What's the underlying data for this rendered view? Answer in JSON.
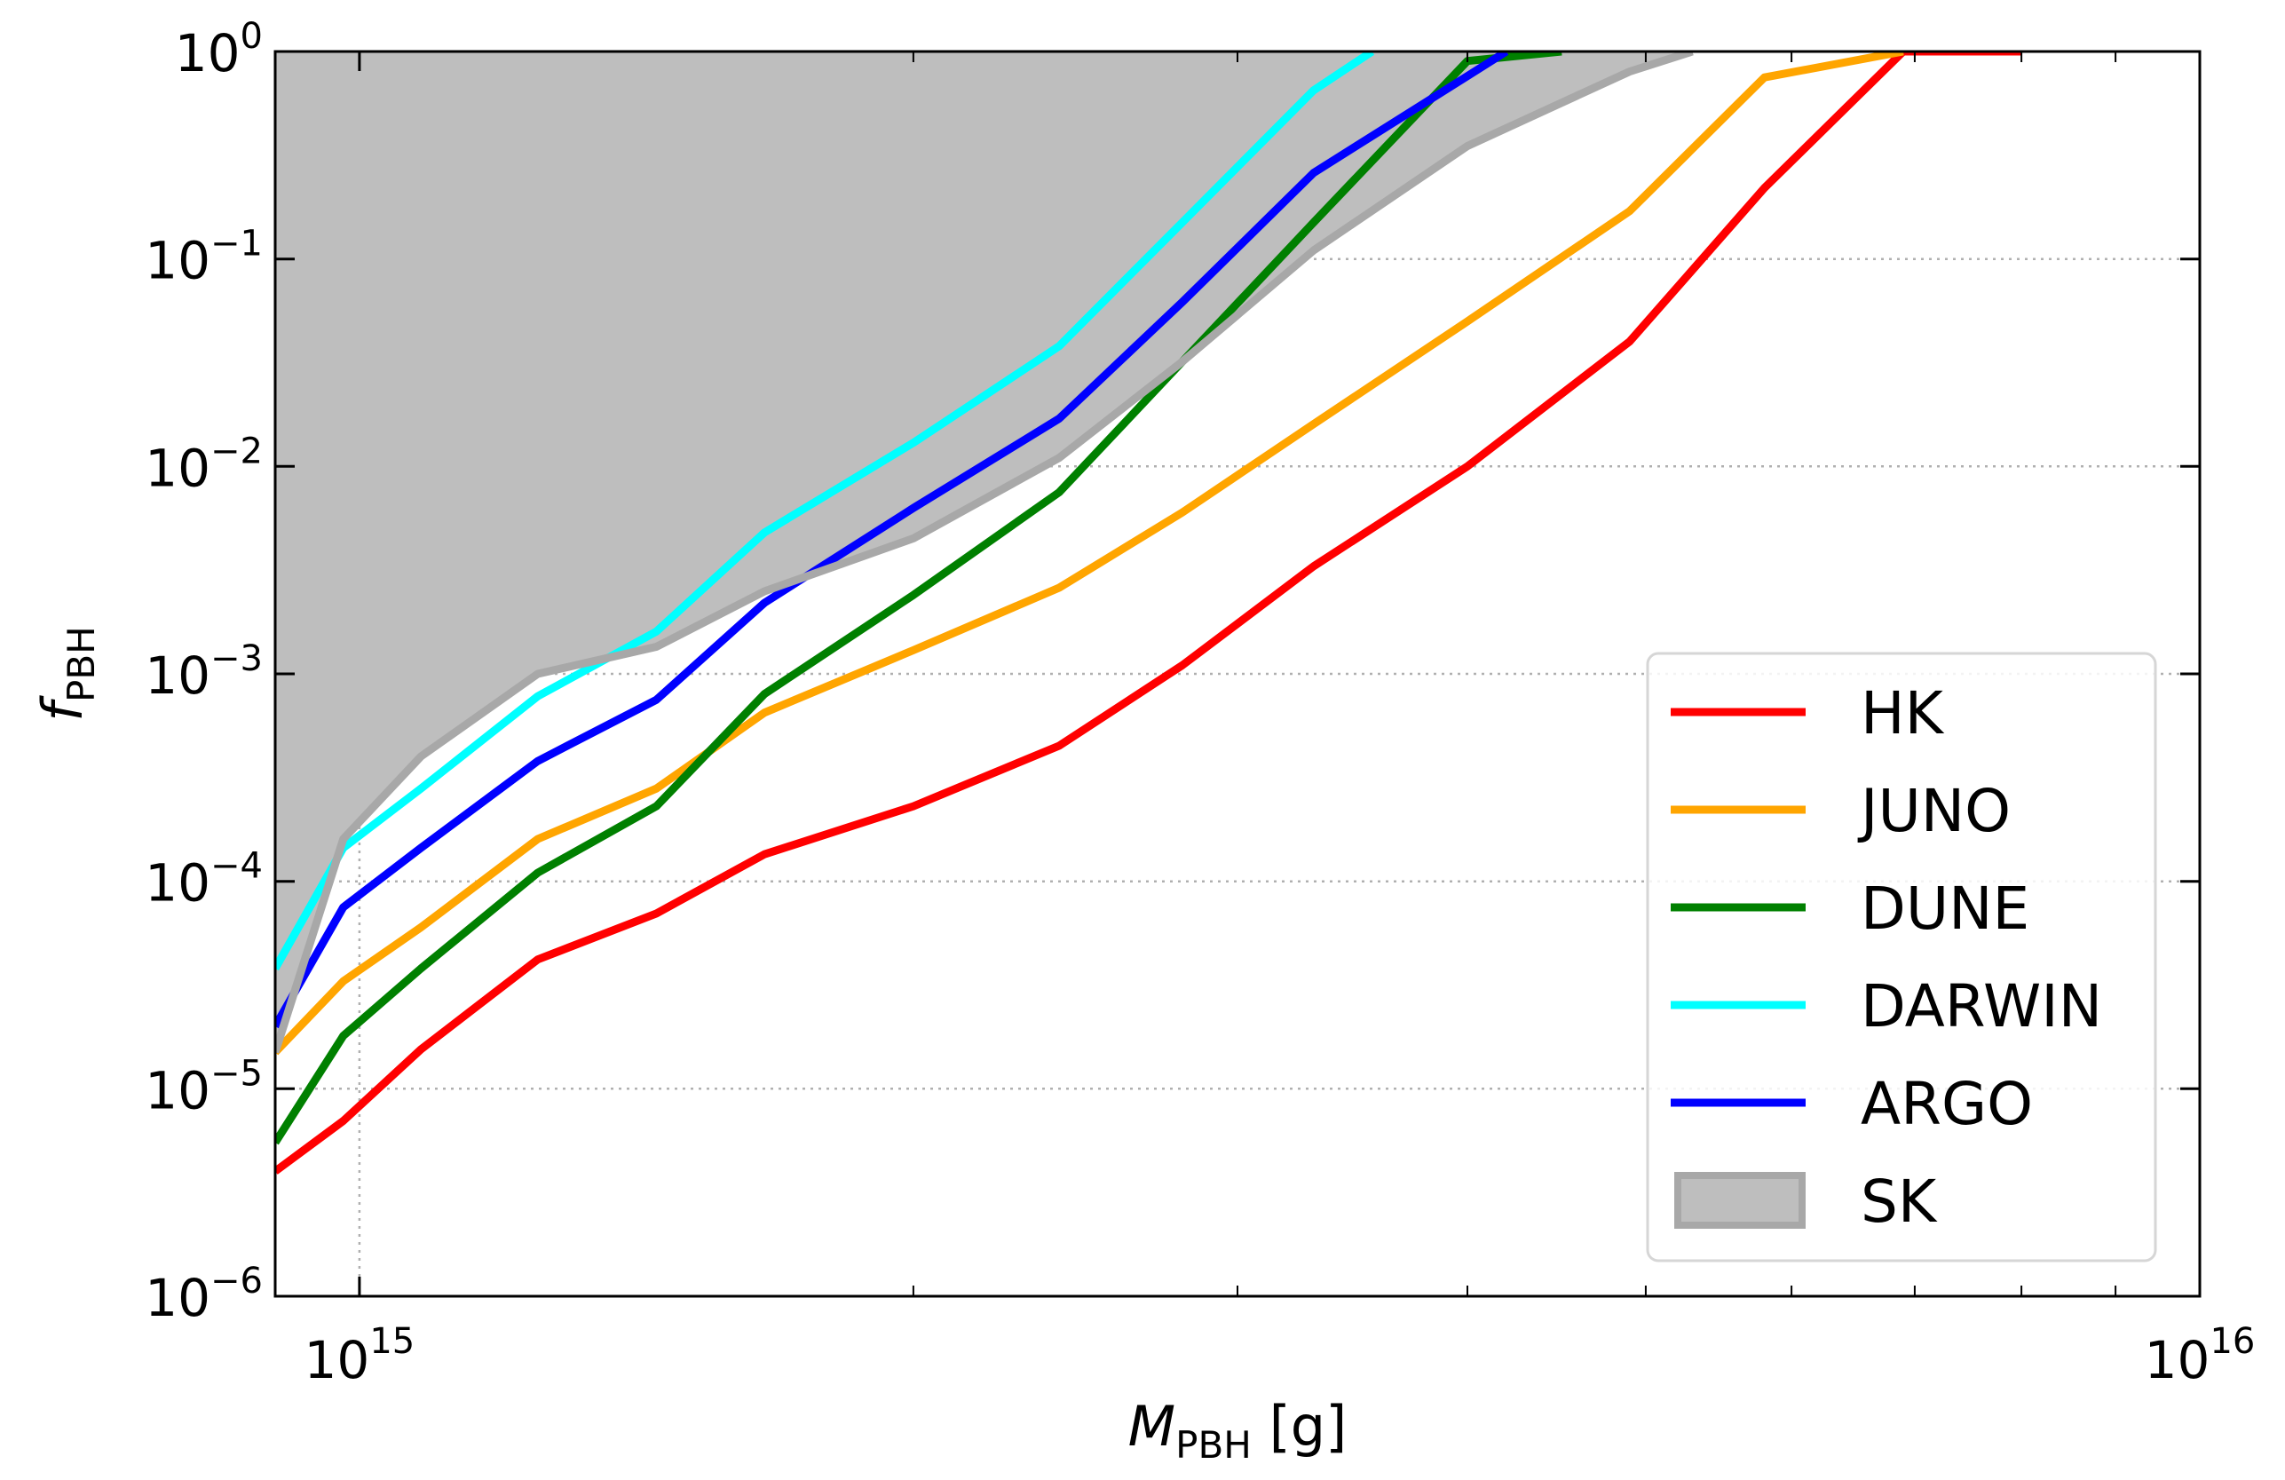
{
  "chart_data": {
    "type": "line",
    "xlabel": {
      "main": "M",
      "sub": "PBH",
      "unit": " [g]"
    },
    "ylabel": {
      "main": "f",
      "sub": "PBH"
    },
    "x_scale": "log",
    "y_scale": "log",
    "xlim": [
      900000000000000.0,
      1e+16
    ],
    "ylim": [
      1e-06,
      1.0
    ],
    "x_ticks": [
      {
        "value": 1000000000000000.0,
        "base": "10",
        "exp": "15"
      },
      {
        "value": 1e+16,
        "base": "10",
        "exp": "16"
      }
    ],
    "y_ticks": [
      {
        "value": 1.0,
        "base": "10",
        "exp": "0"
      },
      {
        "value": 0.1,
        "base": "10",
        "exp": "−1"
      },
      {
        "value": 0.01,
        "base": "10",
        "exp": "−2"
      },
      {
        "value": 0.001,
        "base": "10",
        "exp": "−3"
      },
      {
        "value": 0.0001,
        "base": "10",
        "exp": "−4"
      },
      {
        "value": 1e-05,
        "base": "10",
        "exp": "−5"
      },
      {
        "value": 1e-06,
        "base": "10",
        "exp": "−6"
      }
    ],
    "grid": "dotted, at major decades",
    "legend_position": "lower right",
    "series": [
      {
        "name": "HK",
        "color": "#ff0000",
        "x": [
          900000000000000.0,
          980000000000000.0,
          1080000000000000.0,
          1250000000000000.0,
          1450000000000000.0,
          1660000000000000.0,
          2000000000000000.0,
          2400000000000000.0,
          2800000000000000.0,
          3300000000000000.0,
          4000000000000000.0,
          4900000000000000.0,
          5800000000000000.0,
          6900000000000000.0,
          8000000000000000.0
        ],
        "y": [
          4e-06,
          7e-06,
          1.55e-05,
          4.2e-05,
          7e-05,
          0.000135,
          0.00023,
          0.00045,
          0.0011,
          0.0033,
          0.01,
          0.04,
          0.22,
          1.0,
          1.0
        ]
      },
      {
        "name": "JUNO",
        "color": "#ffa500",
        "x": [
          900000000000000.0,
          980000000000000.0,
          1080000000000000.0,
          1250000000000000.0,
          1450000000000000.0,
          1660000000000000.0,
          2000000000000000.0,
          2400000000000000.0,
          2800000000000000.0,
          3300000000000000.0,
          4000000000000000.0,
          4900000000000000.0,
          5800000000000000.0,
          6900000000000000.0
        ],
        "y": [
          1.5e-05,
          3.3e-05,
          6e-05,
          0.00016,
          0.00028,
          0.00065,
          0.0013,
          0.0026,
          0.006,
          0.016,
          0.05,
          0.17,
          0.75,
          1.0
        ]
      },
      {
        "name": "DUNE",
        "color": "#008000",
        "x": [
          900000000000000.0,
          980000000000000.0,
          1080000000000000.0,
          1250000000000000.0,
          1450000000000000.0,
          1660000000000000.0,
          2000000000000000.0,
          2400000000000000.0,
          2800000000000000.0,
          3300000000000000.0,
          4000000000000000.0,
          4500000000000000.0
        ],
        "y": [
          5.5e-06,
          1.8e-05,
          3.8e-05,
          0.00011,
          0.00023,
          0.0008,
          0.0024,
          0.0075,
          0.032,
          0.15,
          0.9,
          1.0
        ]
      },
      {
        "name": "DARWIN",
        "color": "#00ffff",
        "x": [
          900000000000000.0,
          980000000000000.0,
          1080000000000000.0,
          1250000000000000.0,
          1450000000000000.0,
          1660000000000000.0,
          2000000000000000.0,
          2400000000000000.0,
          2800000000000000.0,
          3300000000000000.0,
          3550000000000000.0
        ],
        "y": [
          3.8e-05,
          0.000145,
          0.00028,
          0.00078,
          0.0016,
          0.0048,
          0.013,
          0.038,
          0.15,
          0.65,
          1.0
        ]
      },
      {
        "name": "ARGO",
        "color": "#0000ff",
        "x": [
          900000000000000.0,
          980000000000000.0,
          1080000000000000.0,
          1250000000000000.0,
          1450000000000000.0,
          1660000000000000.0,
          2000000000000000.0,
          2400000000000000.0,
          2800000000000000.0,
          3300000000000000.0,
          4200000000000000.0
        ],
        "y": [
          2e-05,
          7.5e-05,
          0.000145,
          0.00038,
          0.00075,
          0.0022,
          0.0063,
          0.017,
          0.062,
          0.26,
          1.0
        ]
      }
    ],
    "excluded_region": {
      "name": "SK",
      "fill_color": "#bebebe",
      "edge_color": "#a8a8a8",
      "x": [
        900000000000000.0,
        980000000000000.0,
        1080000000000000.0,
        1250000000000000.0,
        1450000000000000.0,
        1660000000000000.0,
        2000000000000000.0,
        2400000000000000.0,
        2800000000000000.0,
        3300000000000000.0,
        4000000000000000.0,
        4900000000000000.0,
        5300000000000000.0
      ],
      "y": [
        1.5e-05,
        0.00016,
        0.0004,
        0.001,
        0.00135,
        0.0025,
        0.0045,
        0.011,
        0.032,
        0.11,
        0.35,
        0.8,
        1.0
      ]
    }
  }
}
